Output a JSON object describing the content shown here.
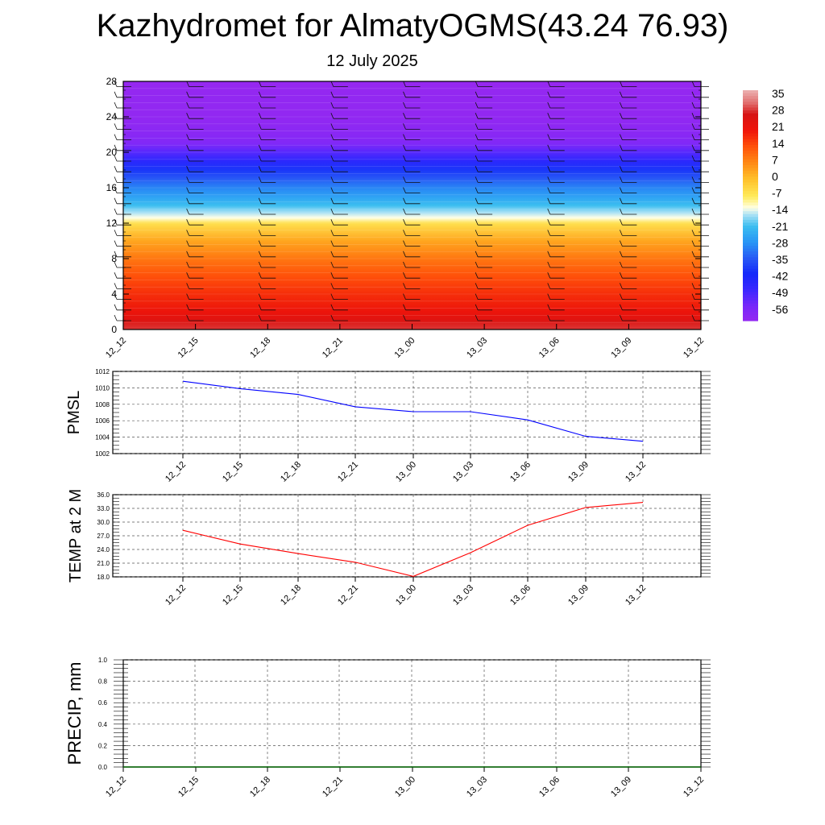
{
  "title": "Kazhydromet for AlmatyOGMS(43.24 76.93)",
  "subtitle": "12 July 2025",
  "chart_data": [
    {
      "type": "heatmap",
      "title": "",
      "xlabel": "",
      "ylabel": "",
      "x_tick_labels": [
        "12_12",
        "12_15",
        "12_18",
        "12_21",
        "13_00",
        "13_03",
        "13_06",
        "13_09",
        "13_12"
      ],
      "y_tick_labels": [
        "0",
        "4",
        "8",
        "12",
        "16",
        "20",
        "24",
        "28"
      ],
      "ylim": [
        0,
        28
      ],
      "colorbar_labels": [
        "35",
        "28",
        "21",
        "14",
        "7",
        "0",
        "-7",
        "-14",
        "-21",
        "-28",
        "-35",
        "-42",
        "-49",
        "-56"
      ],
      "colorbar_range": [
        -63,
        38
      ],
      "profile": {
        "heights": [
          0,
          1,
          2,
          4,
          6,
          8,
          10,
          12,
          12.6,
          13.2,
          14,
          15,
          16,
          17,
          18,
          19,
          20,
          21,
          22,
          24,
          26,
          28
        ],
        "temps": [
          30,
          26,
          22,
          18,
          14,
          9,
          3,
          -6,
          -13,
          -16,
          -21,
          -26,
          -30,
          -35,
          -40,
          -46,
          -52,
          -58,
          -60,
          -62,
          -62,
          -63
        ]
      },
      "overlay": "wind barbs"
    },
    {
      "type": "line",
      "ylabel": "PMSL",
      "categories": [
        "12_12",
        "12_15",
        "12_18",
        "12_21",
        "13_00",
        "13_03",
        "13_06",
        "13_09",
        "13_12"
      ],
      "series": [
        {
          "values": [
            1010.8,
            1009.9,
            1009.2,
            1007.7,
            1007.1,
            1007.1,
            1006.1,
            1004.1,
            1003.5
          ],
          "color": "#0000ff"
        }
      ],
      "y_tick_labels": [
        "1002",
        "1004",
        "1006",
        "1008",
        "1010",
        "1012"
      ],
      "ylim": [
        1002,
        1012
      ],
      "grid": true
    },
    {
      "type": "line",
      "ylabel": "TEMP at 2 M",
      "categories": [
        "12_12",
        "12_15",
        "12_18",
        "12_21",
        "13_00",
        "13_03",
        "13_06",
        "13_09",
        "13_12"
      ],
      "series": [
        {
          "values": [
            28.2,
            25.2,
            23.1,
            21.2,
            18.1,
            23.3,
            29.3,
            33.2,
            34.3
          ],
          "color": "#ff0000"
        }
      ],
      "y_tick_labels": [
        "18.0",
        "21.0",
        "24.0",
        "27.0",
        "30.0",
        "33.0",
        "36.0"
      ],
      "ylim": [
        18,
        36
      ],
      "grid": true
    },
    {
      "type": "line",
      "ylabel": "PRECIP, mm",
      "x_tick_labels": [
        "12_12",
        "12_15",
        "12_18",
        "12_21",
        "13_00",
        "13_03",
        "13_06",
        "13_09",
        "13_12"
      ],
      "series": [
        {
          "values": [
            0,
            0,
            0,
            0,
            0,
            0,
            0,
            0,
            0
          ],
          "color": "#006400"
        }
      ],
      "y_tick_labels": [
        "0.0",
        "0.2",
        "0.4",
        "0.6",
        "0.8",
        "1.0"
      ],
      "ylim": [
        0,
        1
      ],
      "grid": true
    }
  ]
}
